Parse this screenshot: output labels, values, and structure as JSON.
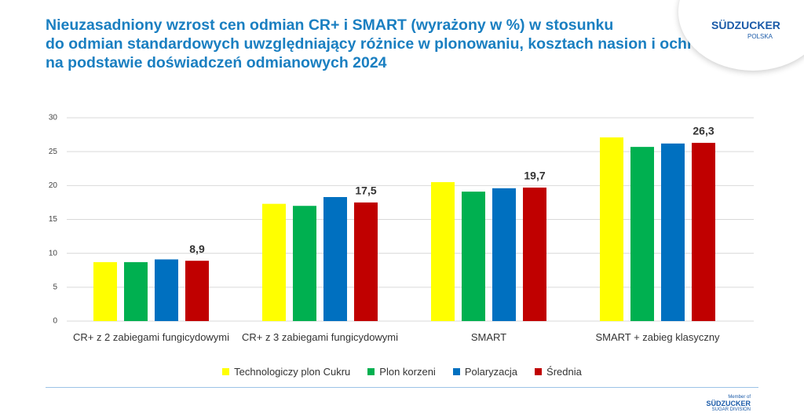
{
  "chart_data": {
    "type": "bar",
    "title": [
      "Nieuzasadniony wzrost cen odmian CR+ i SMART (wyrażony w %) w stosunku",
      "do odmian standardowych uwzględniający różnice w plonowaniu, kosztach nasion i ochrony",
      "na podstawie doświadczeń odmianowych 2024"
    ],
    "categories": [
      "CR+ z 2 zabiegami fungicydowymi",
      "CR+ z 3 zabiegami fungicydowymi",
      "SMART",
      "SMART + zabieg klasyczny"
    ],
    "series": [
      {
        "name": "Technologiczy plon Cukru",
        "color": "#ffff00",
        "values": [
          8.7,
          17.3,
          20.5,
          27.1
        ]
      },
      {
        "name": "Plon korzeni",
        "color": "#00b050",
        "values": [
          8.7,
          17.0,
          19.1,
          25.7
        ]
      },
      {
        "name": "Polaryzacja",
        "color": "#0070c0",
        "values": [
          9.1,
          18.3,
          19.6,
          26.2
        ]
      },
      {
        "name": "Średnia",
        "color": "#c00000",
        "values": [
          8.9,
          17.5,
          19.7,
          26.3
        ],
        "value_labels": [
          "8,9",
          "17,5",
          "19,7",
          "26,3"
        ]
      }
    ],
    "ylim": [
      0,
      30
    ],
    "yticks": [
      0,
      5,
      10,
      15,
      20,
      25,
      30
    ],
    "grid": true,
    "legend": "bottom"
  },
  "logo": {
    "name": "SÜDZUCKER",
    "sub": "POLSKA"
  },
  "footer_logo": {
    "top": "Member of",
    "name": "SÜDZUCKER",
    "sub": "SUGAR DIVISION"
  }
}
